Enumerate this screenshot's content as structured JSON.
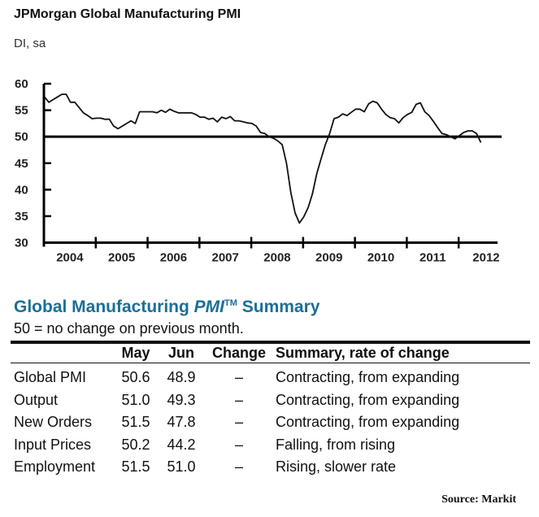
{
  "chart_data": {
    "type": "line",
    "title": "JPMorgan Global Manufacturing PMI",
    "subtitle": "DI, sa",
    "xlabel": "",
    "ylabel": "",
    "ylim": [
      30,
      60
    ],
    "yticks": [
      "30",
      "35",
      "40",
      "45",
      "50",
      "55",
      "60"
    ],
    "ytick_values": [
      30,
      35,
      40,
      45,
      50,
      55,
      60
    ],
    "x_categories": [
      "2004",
      "2005",
      "2006",
      "2007",
      "2008",
      "2009",
      "2010",
      "2011",
      "2012"
    ],
    "x_range_years": [
      2004,
      2012.75
    ],
    "reference_line": 50,
    "grid": false,
    "legend": "none",
    "series": [
      {
        "name": "JPMorgan Global Manufacturing PMI",
        "frequency": "monthly",
        "start": "2004-01",
        "values": [
          57.5,
          56.5,
          57.0,
          57.5,
          58.0,
          58.0,
          56.5,
          56.5,
          55.5,
          54.5,
          54.0,
          53.4,
          53.5,
          53.5,
          53.3,
          53.3,
          52.0,
          51.5,
          52.0,
          52.5,
          53.0,
          52.5,
          54.7,
          54.7,
          54.7,
          54.7,
          54.5,
          55.0,
          54.6,
          55.2,
          54.8,
          54.5,
          54.5,
          54.5,
          54.5,
          54.2,
          53.7,
          53.7,
          53.3,
          53.5,
          52.8,
          53.7,
          53.4,
          53.8,
          53.0,
          53.0,
          52.8,
          52.6,
          52.5,
          52.0,
          50.8,
          50.6,
          50.0,
          49.7,
          49.2,
          48.5,
          45.0,
          39.5,
          35.6,
          33.7,
          34.9,
          36.6,
          39.2,
          43.0,
          45.8,
          48.5,
          50.6,
          53.4,
          53.7,
          54.3,
          54.0,
          54.6,
          55.2,
          55.2,
          54.7,
          56.2,
          56.7,
          56.4,
          55.2,
          54.2,
          53.6,
          53.4,
          52.6,
          53.6,
          54.2,
          54.6,
          56.1,
          56.4,
          54.7,
          54.0,
          52.9,
          51.7,
          50.6,
          50.4,
          50.0,
          49.6,
          50.2,
          50.8,
          51.1,
          51.1,
          50.6,
          48.9
        ]
      }
    ]
  },
  "summary": {
    "title_prefix": "Global Manufacturing ",
    "title_pmi": "PMI",
    "title_tm": "TM",
    "title_suffix": " Summary",
    "note": "50 = no change on previous month.",
    "columns": [
      "",
      "May",
      "Jun",
      "Change",
      "Summary, rate of change"
    ],
    "rows": [
      {
        "name": "Global PMI",
        "may": "50.6",
        "jun": "48.9",
        "change": "–",
        "summary": "Contracting, from expanding"
      },
      {
        "name": "Output",
        "may": "51.0",
        "jun": "49.3",
        "change": "–",
        "summary": "Contracting, from expanding"
      },
      {
        "name": "New Orders",
        "may": "51.5",
        "jun": "47.8",
        "change": "–",
        "summary": "Contracting, from expanding"
      },
      {
        "name": "Input Prices",
        "may": "50.2",
        "jun": "44.2",
        "change": "–",
        "summary": "Falling, from rising"
      },
      {
        "name": "Employment",
        "may": "51.5",
        "jun": "51.0",
        "change": "–",
        "summary": "Rising, slower rate"
      }
    ],
    "title_color": "#1a6f96"
  },
  "source": "Source: Markit"
}
